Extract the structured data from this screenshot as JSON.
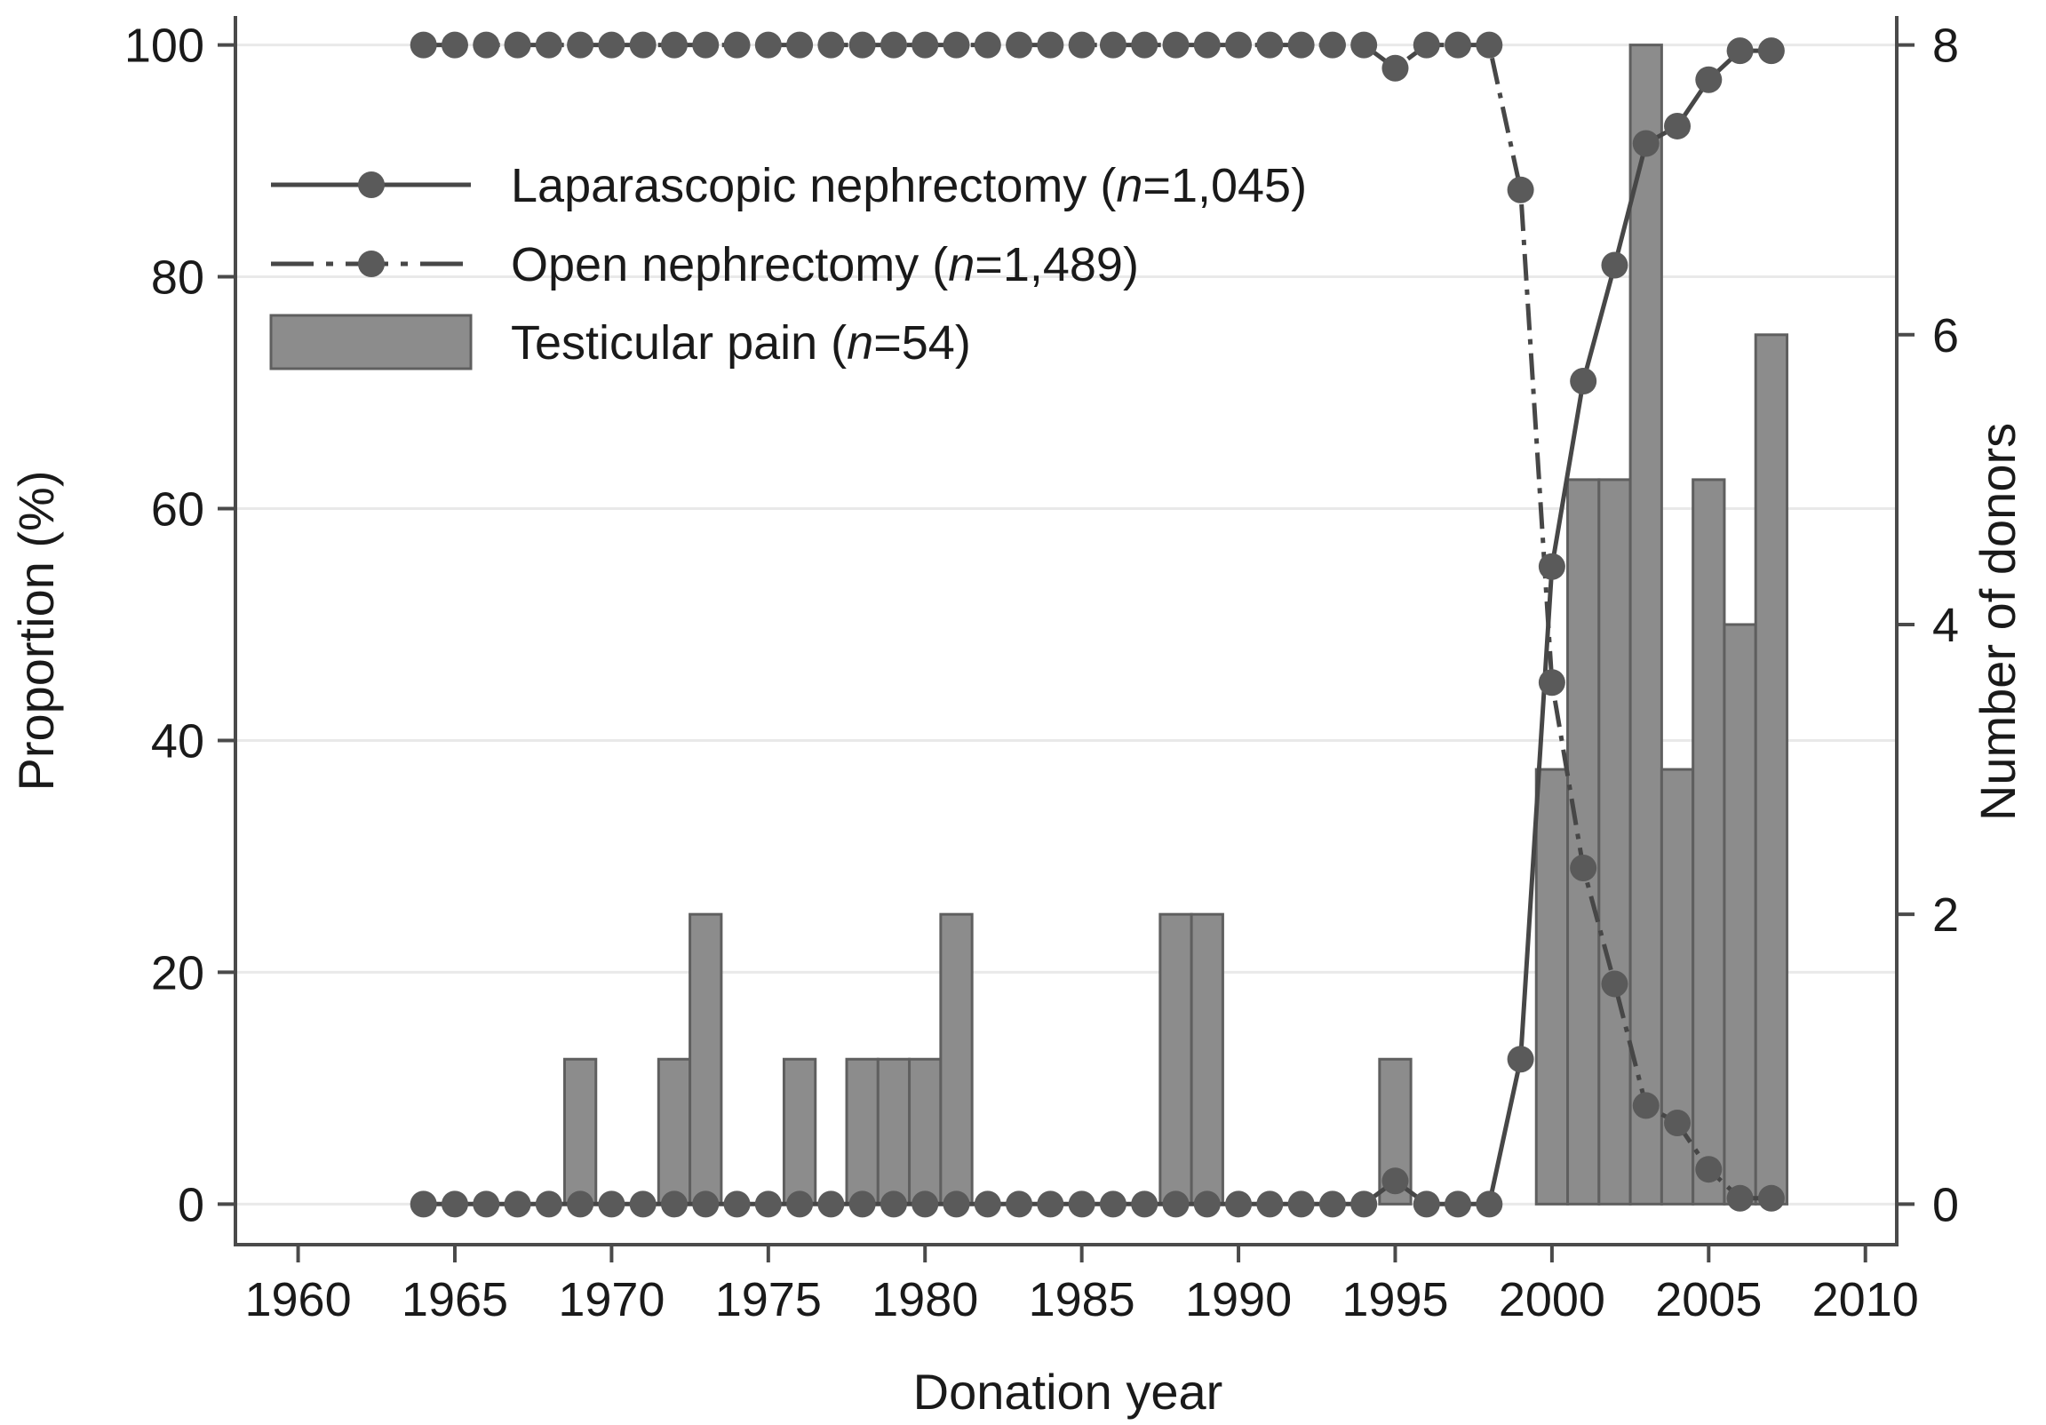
{
  "chart_data": {
    "type": "bar",
    "xlabel": "Donation year",
    "ylabel_left": "Proportion (%)",
    "ylabel_right": "Number of donors",
    "xlim": [
      1958,
      2011
    ],
    "ylim_left": [
      -3.5,
      102.5
    ],
    "ylim_right": [
      -0.28,
      8.2
    ],
    "x_ticks": [
      1960,
      1965,
      1970,
      1975,
      1980,
      1985,
      1990,
      1995,
      2000,
      2005,
      2010
    ],
    "y_left_ticks": [
      0,
      20,
      40,
      60,
      80,
      100
    ],
    "y_right_ticks": [
      0,
      2,
      4,
      6,
      8
    ],
    "grid": "horizontal",
    "legend": {
      "placement": "top-left",
      "items": [
        {
          "key": "lap",
          "text": "Laparascopic nephrectomy (",
          "italic": "n",
          "rest": "=1,045)"
        },
        {
          "key": "open",
          "text": "Open nephrectomy  (",
          "italic": "n",
          "rest": "=1,489)"
        },
        {
          "key": "bars",
          "text": "Testicular pain (",
          "italic": "n",
          "rest": "=54)"
        }
      ]
    },
    "years": [
      1964,
      1965,
      1966,
      1967,
      1968,
      1969,
      1970,
      1971,
      1972,
      1973,
      1974,
      1975,
      1976,
      1977,
      1978,
      1979,
      1980,
      1981,
      1982,
      1983,
      1984,
      1985,
      1986,
      1987,
      1988,
      1989,
      1990,
      1991,
      1992,
      1993,
      1994,
      1995,
      1996,
      1997,
      1998,
      1999,
      2000,
      2001,
      2002,
      2003,
      2004,
      2005,
      2006,
      2007
    ],
    "series": [
      {
        "name": "Laparascopic nephrectomy (n=1,045)",
        "axis": "left",
        "style": "solid",
        "values": [
          0,
          0,
          0,
          0,
          0,
          0,
          0,
          0,
          0,
          0,
          0,
          0,
          0,
          0,
          0,
          0,
          0,
          0,
          0,
          0,
          0,
          0,
          0,
          0,
          0,
          0,
          0,
          0,
          0,
          0,
          0,
          2,
          0,
          0,
          0,
          12.5,
          55,
          71,
          81,
          91.5,
          93,
          97,
          99.5,
          99.5
        ]
      },
      {
        "name": "Open nephrectomy  (n=1,489)",
        "axis": "left",
        "style": "dash-dot",
        "values": [
          100,
          100,
          100,
          100,
          100,
          100,
          100,
          100,
          100,
          100,
          100,
          100,
          100,
          100,
          100,
          100,
          100,
          100,
          100,
          100,
          100,
          100,
          100,
          100,
          100,
          100,
          100,
          100,
          100,
          100,
          100,
          98,
          100,
          100,
          100,
          87.5,
          45,
          29,
          19,
          8.5,
          7,
          3,
          0.5,
          0.5
        ]
      },
      {
        "name": "Testicular pain (n=54)",
        "axis": "right",
        "type": "bar",
        "bars": [
          {
            "x": 1969,
            "value": 1
          },
          {
            "x": 1972,
            "value": 1
          },
          {
            "x": 1973,
            "value": 2
          },
          {
            "x": 1976,
            "value": 1
          },
          {
            "x": 1978,
            "value": 1
          },
          {
            "x": 1979,
            "value": 1
          },
          {
            "x": 1980,
            "value": 1
          },
          {
            "x": 1981,
            "value": 2
          },
          {
            "x": 1988,
            "value": 2
          },
          {
            "x": 1989,
            "value": 2
          },
          {
            "x": 1995,
            "value": 1
          },
          {
            "x": 2000,
            "value": 3
          },
          {
            "x": 2001,
            "value": 5
          },
          {
            "x": 2002,
            "value": 5
          },
          {
            "x": 2003,
            "value": 8
          },
          {
            "x": 2004,
            "value": 3
          },
          {
            "x": 2005,
            "value": 5
          },
          {
            "x": 2006,
            "value": 4
          },
          {
            "x": 2007,
            "value": 6
          }
        ]
      }
    ],
    "colors": {
      "bar_fill": "#8c8c8c",
      "bar_stroke": "#5f5f5f",
      "line": "#474747",
      "marker": "#5a5a5a",
      "axis": "#4a4a4a",
      "grid": "#e9e9e9"
    }
  }
}
